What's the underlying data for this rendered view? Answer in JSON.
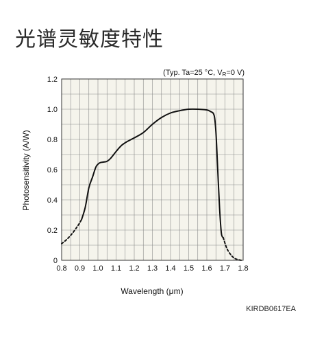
{
  "page": {
    "title": "光谱灵敏度特性",
    "figure_code": "KIRDB0617EA"
  },
  "chart_data": {
    "type": "line",
    "annotation": "(Typ. Ta=25 °C, V",
    "annotation_sub": "R",
    "annotation_tail": "=0 V)",
    "xlabel": "Wavelength (μm)",
    "ylabel": "Photosensitivity (A/W)",
    "xlim": [
      0.8,
      1.8
    ],
    "ylim": [
      0,
      1.2
    ],
    "x_ticks": [
      "0.8",
      "0.9",
      "1.0",
      "1.1",
      "1.2",
      "1.3",
      "1.4",
      "1.5",
      "1.6",
      "1.7",
      "1.8"
    ],
    "y_ticks": [
      "0",
      "0.2",
      "0.4",
      "0.6",
      "0.8",
      "1.0",
      "1.2"
    ],
    "grid": true,
    "plot_background": "#f5f4ec",
    "grid_color": "#8a8a8a",
    "line_color": "#111111",
    "series": [
      {
        "style": "dashed",
        "x": [
          0.8,
          0.83,
          0.86,
          0.89,
          0.91
        ],
        "y": [
          0.11,
          0.14,
          0.18,
          0.23,
          0.27
        ]
      },
      {
        "style": "solid",
        "x": [
          0.91,
          0.93,
          0.95,
          0.97,
          0.99,
          1.01,
          1.03,
          1.05,
          1.07,
          1.1,
          1.13,
          1.16,
          1.2,
          1.25,
          1.3,
          1.35,
          1.4,
          1.45,
          1.5,
          1.55,
          1.6,
          1.62,
          1.64,
          1.65,
          1.66,
          1.67,
          1.68,
          1.69
        ],
        "y": [
          0.27,
          0.35,
          0.48,
          0.55,
          0.62,
          0.645,
          0.65,
          0.655,
          0.675,
          0.72,
          0.76,
          0.785,
          0.81,
          0.845,
          0.9,
          0.945,
          0.975,
          0.99,
          1.0,
          1.0,
          0.995,
          0.985,
          0.96,
          0.85,
          0.6,
          0.35,
          0.18,
          0.15
        ]
      },
      {
        "style": "dashed",
        "x": [
          1.69,
          1.71,
          1.73,
          1.75,
          1.77,
          1.79
        ],
        "y": [
          0.15,
          0.08,
          0.04,
          0.015,
          0.005,
          0.0
        ]
      }
    ]
  }
}
